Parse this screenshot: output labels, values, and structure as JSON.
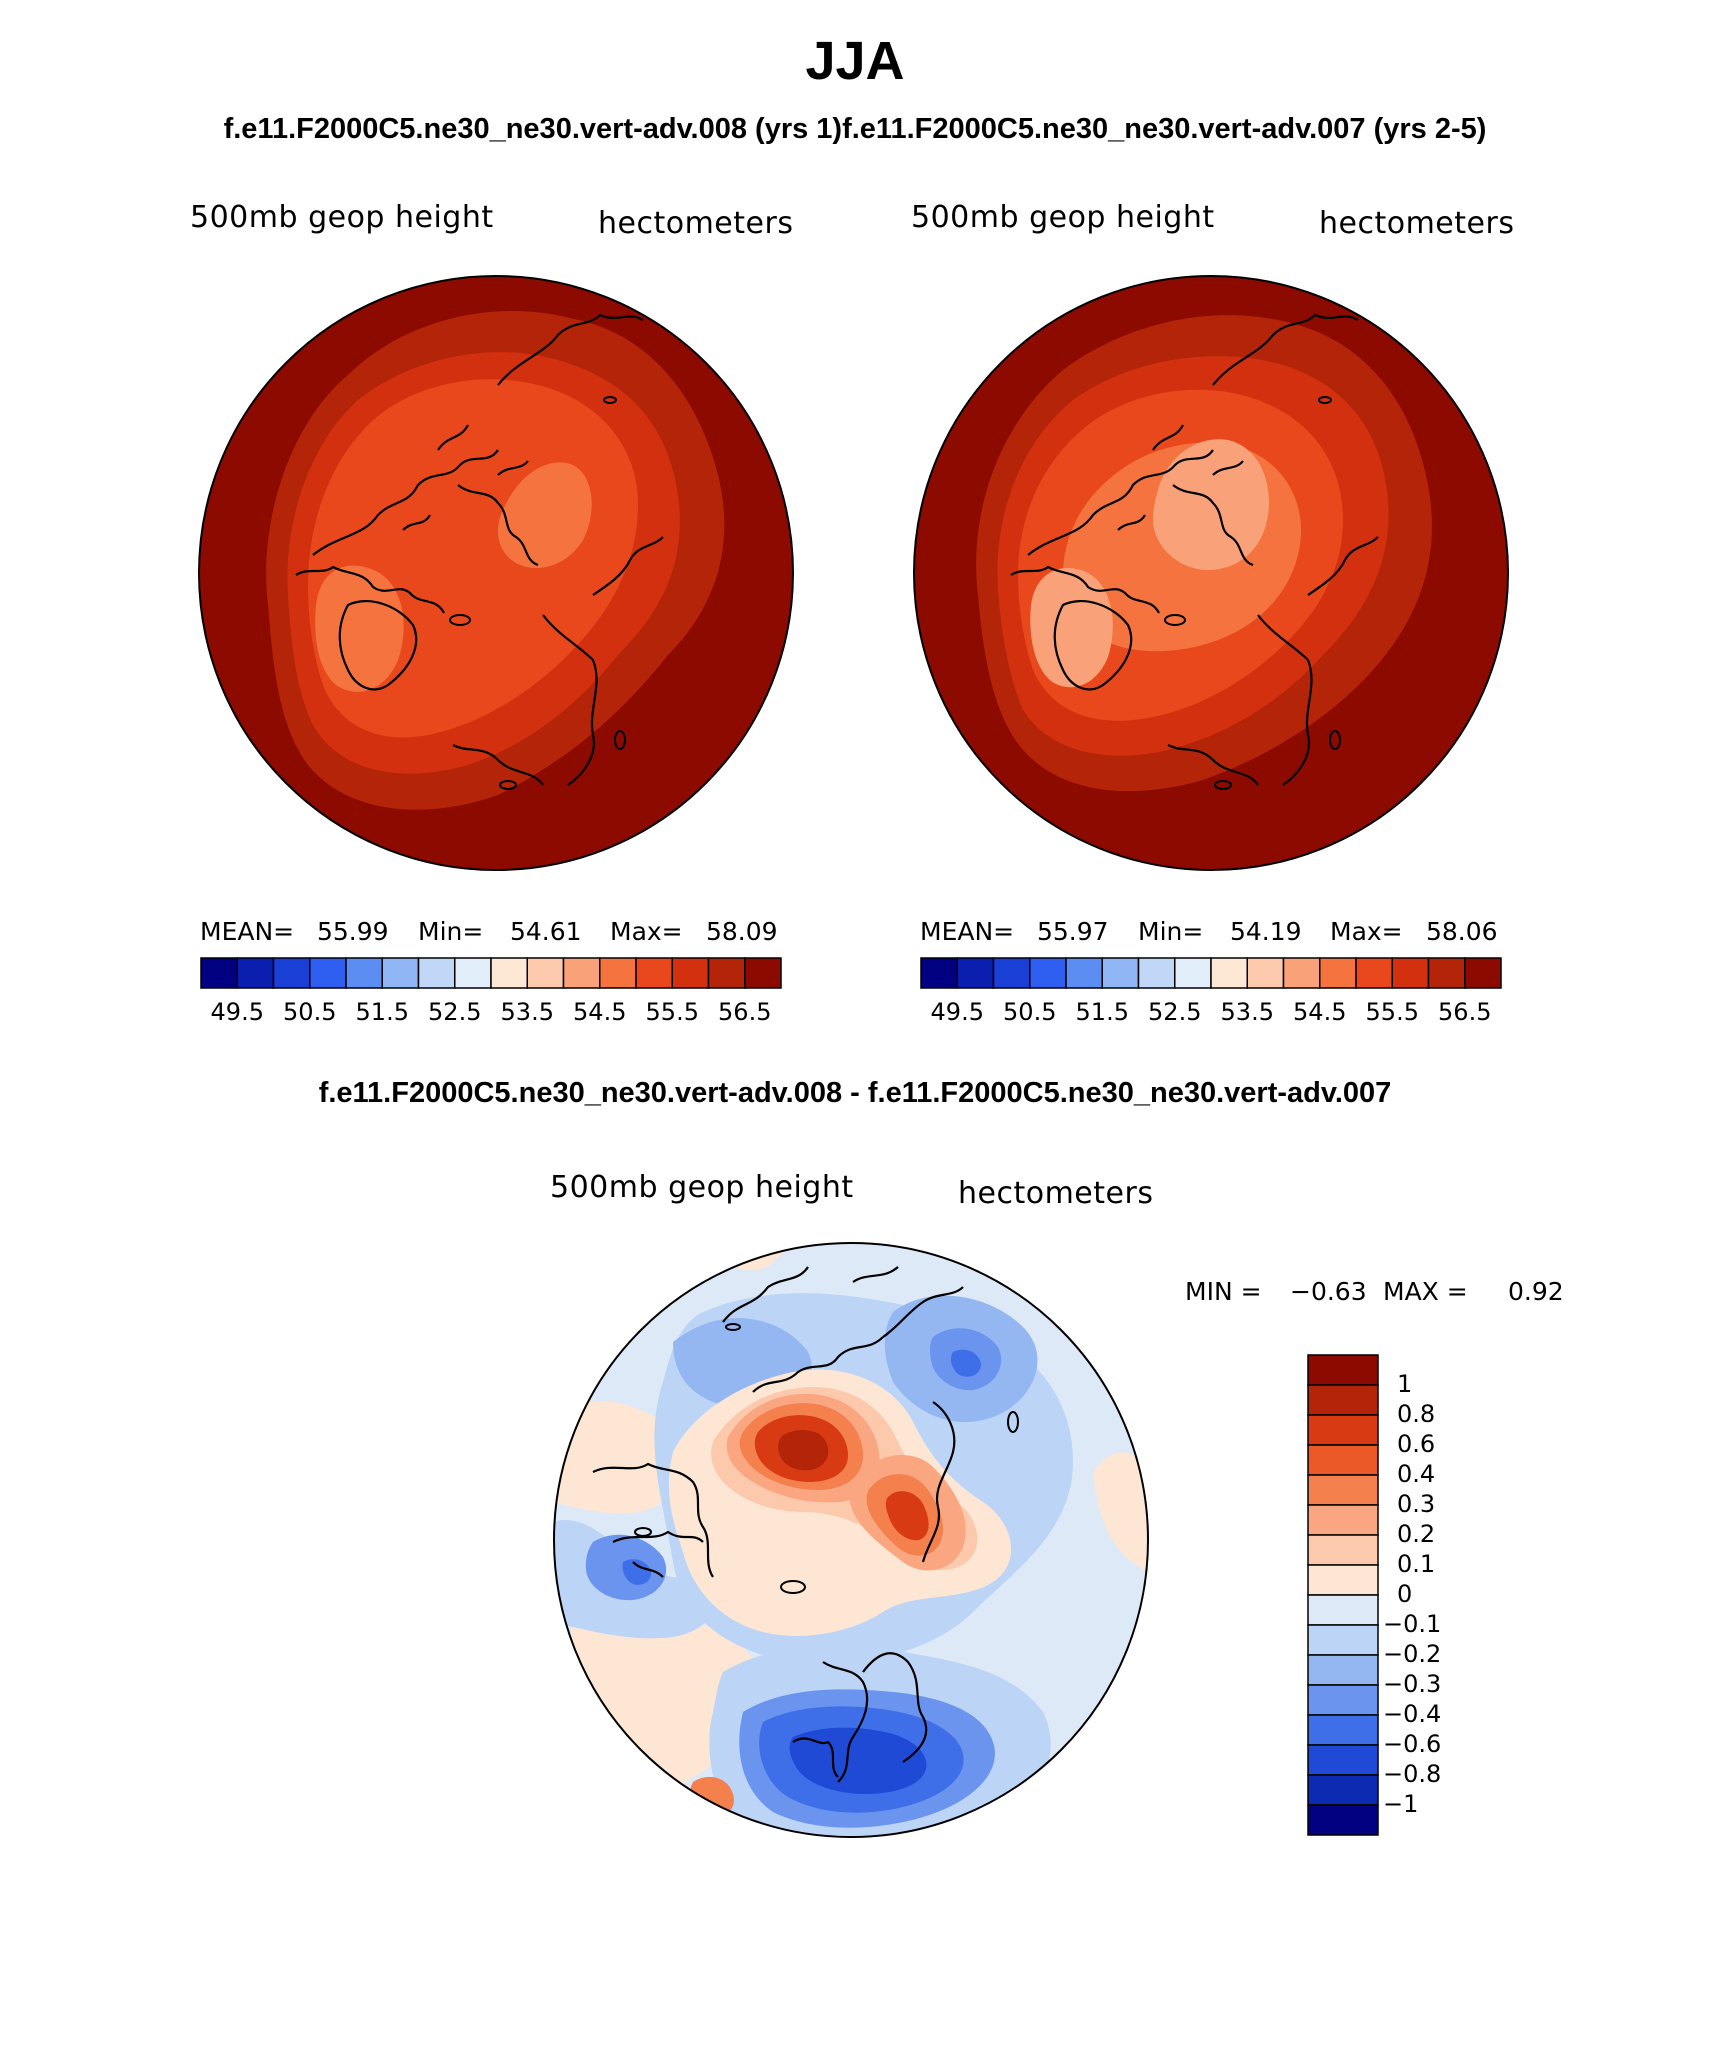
{
  "figure": {
    "season": "JJA",
    "subtitle": "f.e11.F2000C5.ne30_ne30.vert-adv.008 (yrs 1)f.e11.F2000C5.ne30_ne30.vert-adv.007 (yrs 2-5)",
    "diff_title": "f.e11.F2000C5.ne30_ne30.vert-adv.008 - f.e11.F2000C5.ne30_ne30.vert-adv.007"
  },
  "panels": [
    {
      "variable": "500mb geop height",
      "units": "hectometers",
      "stats": {
        "mean_label": "MEAN=",
        "mean": "55.99",
        "min_label": "Min=",
        "min": "54.61",
        "max_label": "Max=",
        "max": "58.09"
      },
      "colorbar_ticks": [
        "49.5",
        "50.5",
        "51.5",
        "52.5",
        "53.5",
        "54.5",
        "55.5",
        "56.5"
      ]
    },
    {
      "variable": "500mb geop height",
      "units": "hectometers",
      "stats": {
        "mean_label": "MEAN=",
        "mean": "55.97",
        "min_label": "Min=",
        "min": "54.19",
        "max_label": "Max=",
        "max": "58.06"
      },
      "colorbar_ticks": [
        "49.5",
        "50.5",
        "51.5",
        "52.5",
        "53.5",
        "54.5",
        "55.5",
        "56.5"
      ]
    }
  ],
  "diff_panel": {
    "variable": "500mb geop height",
    "units": "hectometers",
    "stats": {
      "min_label": "MIN =",
      "min": "−0.63",
      "max_label": "MAX =",
      "max": "0.92"
    },
    "colorbar_ticks": [
      "1",
      "0.8",
      "0.6",
      "0.4",
      "0.3",
      "0.2",
      "0.1",
      "0",
      "−0.1",
      "−0.2",
      "−0.3",
      "−0.4",
      "−0.6",
      "−0.8",
      "−1"
    ]
  },
  "colors": {
    "main_scale": [
      "#000080",
      "#0a1fb0",
      "#1a3fd6",
      "#2d5ef0",
      "#5b8df2",
      "#8fb5f5",
      "#c0d7f8",
      "#e3eefb",
      "#fde8d6",
      "#fcc9ac",
      "#f9a27a",
      "#f4733f",
      "#e8481c",
      "#d33010",
      "#b32408",
      "#8c0a00"
    ],
    "diff_scale": [
      "#8c0a00",
      "#b32408",
      "#d83a14",
      "#eb5a26",
      "#f4804e",
      "#f9a681",
      "#fcc9ad",
      "#fde7d4",
      "#dde9f7",
      "#bcd4f6",
      "#94b7f2",
      "#6a94ee",
      "#3f6fe8",
      "#1f4ad6",
      "#0c2ab2",
      "#000080"
    ]
  }
}
